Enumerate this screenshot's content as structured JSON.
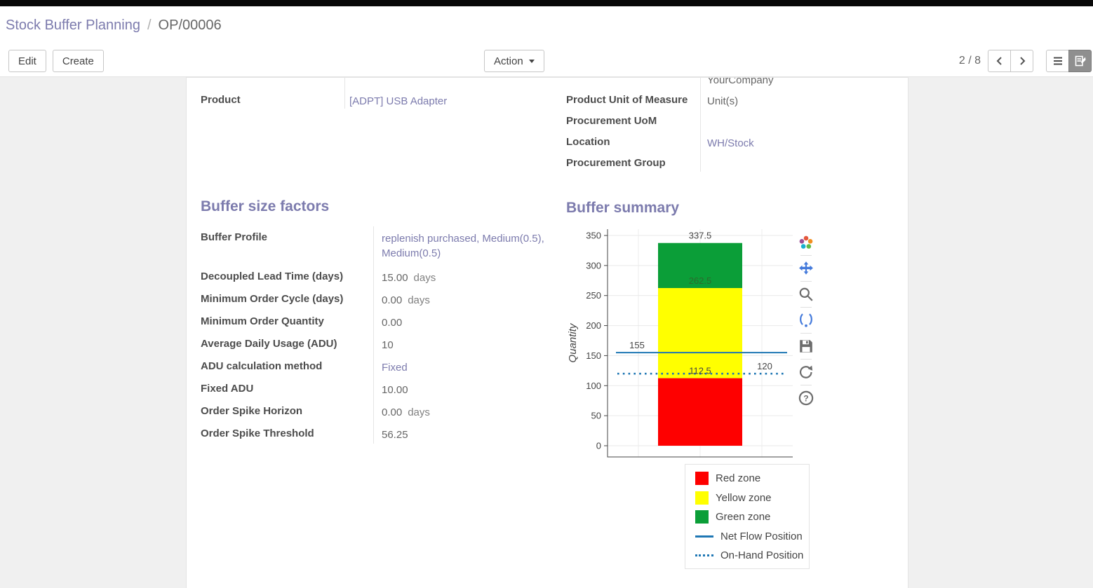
{
  "breadcrumb": {
    "parent": "Stock Buffer Planning",
    "separator": "/",
    "current": "OP/00006"
  },
  "controls": {
    "edit": "Edit",
    "create": "Create",
    "action": "Action",
    "pager": "2 / 8"
  },
  "form": {
    "clipped_company_value": "YourCompany",
    "product_label": "Product",
    "product_value": "[ADPT] USB Adapter",
    "right_rows": [
      {
        "label": "Product Unit of Measure",
        "value": "Unit(s)"
      },
      {
        "label": "Procurement UoM",
        "value": ""
      },
      {
        "label": "Location",
        "value": "WH/Stock"
      },
      {
        "label": "Procurement Group",
        "value": ""
      }
    ]
  },
  "buffer_factors": {
    "title": "Buffer size factors",
    "rows": [
      {
        "label": "Buffer Profile",
        "value": "replenish purchased, Medium(0.5), Medium(0.5)"
      },
      {
        "label": "Decoupled Lead Time (days)",
        "value": "15.00",
        "unit": "days"
      },
      {
        "label": "Minimum Order Cycle (days)",
        "value": "0.00",
        "unit": "days"
      },
      {
        "label": "Minimum Order Quantity",
        "value": "0.00"
      },
      {
        "label": "Average Daily Usage (ADU)",
        "value": "10"
      },
      {
        "label": "ADU calculation method",
        "value": "Fixed"
      },
      {
        "label": "Fixed ADU",
        "value": "10.00"
      },
      {
        "label": "Order Spike Horizon",
        "value": "0.00",
        "unit": "days"
      },
      {
        "label": "Order Spike Threshold",
        "value": "56.25"
      }
    ]
  },
  "buffer_summary": {
    "title": "Buffer summary"
  },
  "chart_data": {
    "type": "bar",
    "title": "",
    "xlabel": "",
    "ylabel": "Quantity",
    "ylim": [
      0,
      350
    ],
    "yticks": [
      0,
      50,
      100,
      150,
      200,
      250,
      300,
      350
    ],
    "grid": true,
    "zones": [
      {
        "name": "Red zone",
        "from": 0,
        "to": 112.5,
        "color": "#fe0000"
      },
      {
        "name": "Yellow zone",
        "from": 112.5,
        "to": 262.5,
        "color": "#ffff00"
      },
      {
        "name": "Green zone",
        "from": 262.5,
        "to": 337.5,
        "color": "#0b9e38"
      }
    ],
    "lines": [
      {
        "name": "Net Flow Position",
        "value": 155,
        "style": "solid",
        "color": "#1f77b4"
      },
      {
        "name": "On-Hand Position",
        "value": 120,
        "style": "dotted",
        "color": "#1f77b4"
      }
    ],
    "annotations": [
      {
        "text": "337.5",
        "value": 337.5,
        "anchor": "center",
        "color": "#444444"
      },
      {
        "text": "262.5",
        "value": 262.5,
        "anchor": "center",
        "color": "#2d6a2d"
      },
      {
        "text": "155",
        "value": 155,
        "anchor": "left",
        "color": "#444444"
      },
      {
        "text": "112.5",
        "value": 112.5,
        "anchor": "center",
        "color": "#444444"
      },
      {
        "text": "120",
        "value": 120,
        "anchor": "right",
        "color": "#444444"
      }
    ],
    "legend": [
      {
        "label": "Red zone",
        "type": "square",
        "color": "#fe0000"
      },
      {
        "label": "Yellow zone",
        "type": "square",
        "color": "#ffff00"
      },
      {
        "label": "Green zone",
        "type": "square",
        "color": "#0b9e38"
      },
      {
        "label": "Net Flow Position",
        "type": "line",
        "color": "#1f77b4"
      },
      {
        "label": "On-Hand Position",
        "type": "dotted",
        "color": "#1f77b4"
      }
    ],
    "legend_position": "bottom-right",
    "modebar_icons": [
      "plotly-logo",
      "pan",
      "zoom",
      "lasso-select",
      "save",
      "reset-axes",
      "help"
    ]
  }
}
